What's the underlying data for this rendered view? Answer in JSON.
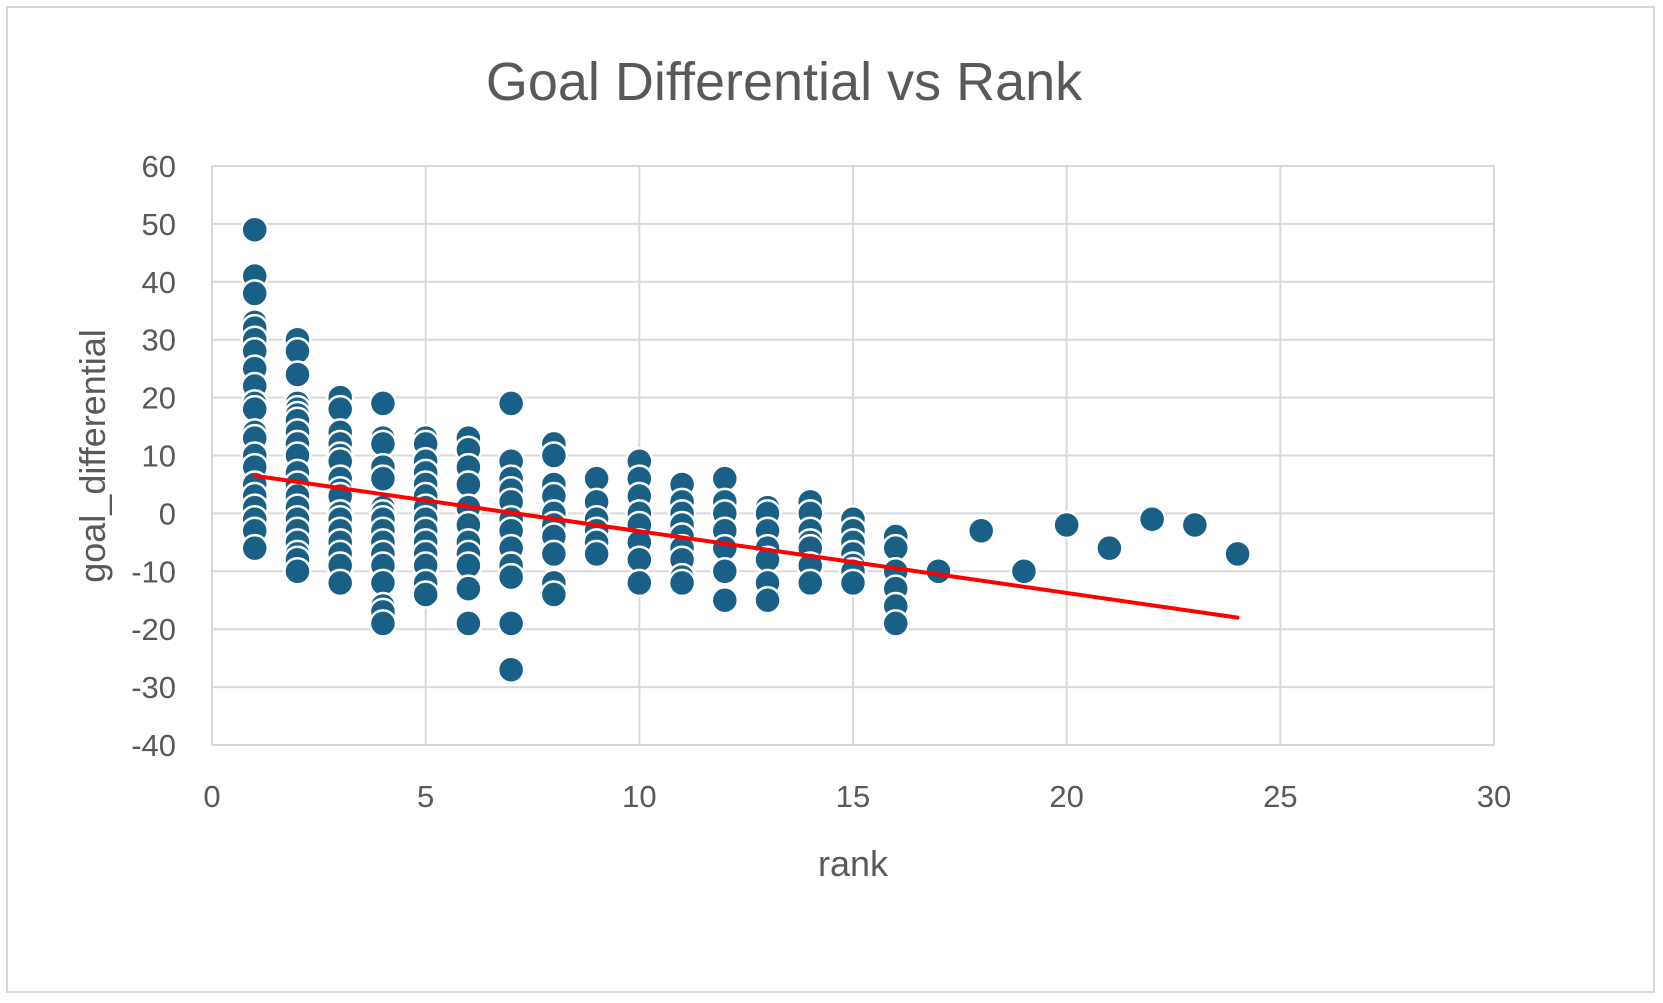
{
  "chart_data": {
    "type": "scatter",
    "title": "Goal Differential vs Rank",
    "xlabel": "rank",
    "ylabel": "goal_differential",
    "xlim": [
      0,
      30
    ],
    "ylim": [
      -40,
      60
    ],
    "x_ticks": [
      0,
      5,
      10,
      15,
      20,
      25,
      30
    ],
    "y_ticks": [
      60,
      50,
      40,
      30,
      20,
      10,
      0,
      -10,
      -20,
      -30,
      -40
    ],
    "grid": true,
    "legend": "none",
    "marker_color": "#1a5f86",
    "marker_edge_color": "#ffffff",
    "trendline_color": "#ff0000",
    "points": [
      [
        1,
        49
      ],
      [
        1,
        41
      ],
      [
        1,
        38
      ],
      [
        1,
        33
      ],
      [
        1,
        32
      ],
      [
        1,
        30
      ],
      [
        1,
        28
      ],
      [
        1,
        25
      ],
      [
        1,
        22
      ],
      [
        1,
        19
      ],
      [
        1,
        18
      ],
      [
        1,
        14
      ],
      [
        1,
        13
      ],
      [
        1,
        10
      ],
      [
        1,
        8
      ],
      [
        1,
        5
      ],
      [
        1,
        3
      ],
      [
        1,
        1
      ],
      [
        1,
        -1
      ],
      [
        1,
        -3
      ],
      [
        1,
        -6
      ],
      [
        2,
        30
      ],
      [
        2,
        28
      ],
      [
        2,
        24
      ],
      [
        2,
        19
      ],
      [
        2,
        18
      ],
      [
        2,
        17
      ],
      [
        2,
        16
      ],
      [
        2,
        14
      ],
      [
        2,
        12
      ],
      [
        2,
        10
      ],
      [
        2,
        7
      ],
      [
        2,
        5
      ],
      [
        2,
        3
      ],
      [
        2,
        1
      ],
      [
        2,
        -1
      ],
      [
        2,
        -3
      ],
      [
        2,
        -5
      ],
      [
        2,
        -7
      ],
      [
        2,
        -8
      ],
      [
        2,
        -10
      ],
      [
        3,
        20
      ],
      [
        3,
        18
      ],
      [
        3,
        14
      ],
      [
        3,
        12
      ],
      [
        3,
        10
      ],
      [
        3,
        9
      ],
      [
        3,
        6
      ],
      [
        3,
        4
      ],
      [
        3,
        3
      ],
      [
        3,
        0
      ],
      [
        3,
        -1
      ],
      [
        3,
        -3
      ],
      [
        3,
        -5
      ],
      [
        3,
        -7
      ],
      [
        3,
        -9
      ],
      [
        3,
        -12
      ],
      [
        4,
        19
      ],
      [
        4,
        13
      ],
      [
        4,
        12
      ],
      [
        4,
        8
      ],
      [
        4,
        6
      ],
      [
        4,
        1
      ],
      [
        4,
        0
      ],
      [
        4,
        -1
      ],
      [
        4,
        -3
      ],
      [
        4,
        -5
      ],
      [
        4,
        -7
      ],
      [
        4,
        -9
      ],
      [
        4,
        -12
      ],
      [
        4,
        -16
      ],
      [
        4,
        -17
      ],
      [
        4,
        -19
      ],
      [
        5,
        13
      ],
      [
        5,
        12
      ],
      [
        5,
        9
      ],
      [
        5,
        7
      ],
      [
        5,
        5
      ],
      [
        5,
        3
      ],
      [
        5,
        1
      ],
      [
        5,
        -1
      ],
      [
        5,
        -3
      ],
      [
        5,
        -5
      ],
      [
        5,
        -7
      ],
      [
        5,
        -9
      ],
      [
        5,
        -12
      ],
      [
        5,
        -14
      ],
      [
        6,
        13
      ],
      [
        6,
        11
      ],
      [
        6,
        8
      ],
      [
        6,
        5
      ],
      [
        6,
        1
      ],
      [
        6,
        -2
      ],
      [
        6,
        -5
      ],
      [
        6,
        -7
      ],
      [
        6,
        -9
      ],
      [
        6,
        -13
      ],
      [
        6,
        -19
      ],
      [
        7,
        19
      ],
      [
        7,
        9
      ],
      [
        7,
        6
      ],
      [
        7,
        4
      ],
      [
        7,
        2
      ],
      [
        7,
        -1
      ],
      [
        7,
        -3
      ],
      [
        7,
        -6
      ],
      [
        7,
        -9
      ],
      [
        7,
        -11
      ],
      [
        7,
        -19
      ],
      [
        7,
        -27
      ],
      [
        8,
        12
      ],
      [
        8,
        10
      ],
      [
        8,
        5
      ],
      [
        8,
        3
      ],
      [
        8,
        0
      ],
      [
        8,
        -2
      ],
      [
        8,
        -4
      ],
      [
        8,
        -7
      ],
      [
        8,
        -12
      ],
      [
        8,
        -14
      ],
      [
        9,
        6
      ],
      [
        9,
        2
      ],
      [
        9,
        -1
      ],
      [
        9,
        -3
      ],
      [
        9,
        -5
      ],
      [
        9,
        -7
      ],
      [
        10,
        9
      ],
      [
        10,
        6
      ],
      [
        10,
        3
      ],
      [
        10,
        0
      ],
      [
        10,
        -2
      ],
      [
        10,
        -5
      ],
      [
        10,
        -8
      ],
      [
        10,
        -12
      ],
      [
        11,
        5
      ],
      [
        11,
        2
      ],
      [
        11,
        0
      ],
      [
        11,
        -2
      ],
      [
        11,
        -4
      ],
      [
        11,
        -6
      ],
      [
        11,
        -8
      ],
      [
        11,
        -11
      ],
      [
        11,
        -12
      ],
      [
        12,
        6
      ],
      [
        12,
        2
      ],
      [
        12,
        0
      ],
      [
        12,
        -3
      ],
      [
        12,
        -6
      ],
      [
        12,
        -10
      ],
      [
        12,
        -15
      ],
      [
        13,
        1
      ],
      [
        13,
        0
      ],
      [
        13,
        -3
      ],
      [
        13,
        -6
      ],
      [
        13,
        -8
      ],
      [
        13,
        -12
      ],
      [
        13,
        -15
      ],
      [
        14,
        2
      ],
      [
        14,
        0
      ],
      [
        14,
        -3
      ],
      [
        14,
        -5
      ],
      [
        14,
        -6
      ],
      [
        14,
        -9
      ],
      [
        14,
        -12
      ],
      [
        15,
        -1
      ],
      [
        15,
        -3
      ],
      [
        15,
        -5
      ],
      [
        15,
        -7
      ],
      [
        15,
        -9
      ],
      [
        15,
        -10
      ],
      [
        15,
        -12
      ],
      [
        16,
        -4
      ],
      [
        16,
        -6
      ],
      [
        16,
        -10
      ],
      [
        16,
        -13
      ],
      [
        16,
        -16
      ],
      [
        16,
        -19
      ],
      [
        17,
        -10
      ],
      [
        18,
        -3
      ],
      [
        19,
        -10
      ],
      [
        20,
        -2
      ],
      [
        21,
        -6
      ],
      [
        22,
        -1
      ],
      [
        23,
        -2
      ],
      [
        24,
        -7
      ]
    ],
    "trendline": {
      "from": [
        1,
        6.5
      ],
      "to": [
        24,
        -18
      ]
    }
  }
}
